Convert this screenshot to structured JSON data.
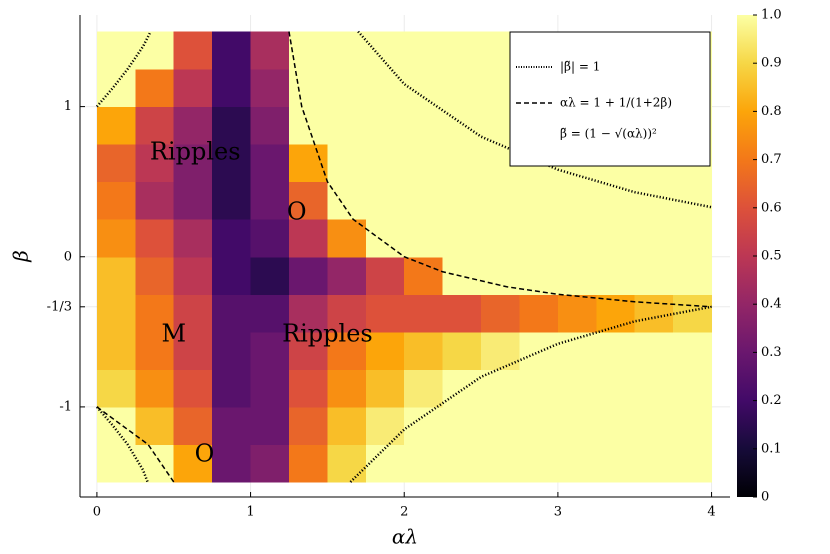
{
  "chart_data": {
    "type": "heatmap",
    "colormap": "inferno",
    "xlabel": "αλ",
    "ylabel": "β",
    "xlim": [
      -0.11,
      4.12
    ],
    "ylim": [
      -1.6,
      1.61
    ],
    "xticks": [
      0,
      1,
      2,
      3,
      4
    ],
    "yticks": [
      -1,
      {
        "value": -0.3333,
        "label": "-1/3"
      },
      0,
      1
    ],
    "grid": true,
    "x": [
      0,
      0.25,
      0.5,
      0.75,
      1,
      1.25,
      1.5,
      1.75,
      2,
      2.25,
      2.5,
      2.75,
      3,
      3.25,
      3.5,
      3.75,
      4
    ],
    "y": [
      -1.5,
      -1.25,
      -1,
      -0.75,
      -0.5,
      -0.25,
      0,
      0.25,
      0.5,
      0.75,
      1,
      1.25,
      1.5
    ],
    "z": [
      [
        1,
        1,
        0.8,
        0.3,
        0.35,
        0.7,
        0.9,
        1,
        1,
        1,
        1,
        1,
        1,
        1,
        1,
        1
      ],
      [
        1,
        0.85,
        0.65,
        0.3,
        0.3,
        0.65,
        0.85,
        0.95,
        1,
        1,
        1,
        1,
        1,
        1,
        1,
        1
      ],
      [
        0.9,
        0.75,
        0.6,
        0.25,
        0.3,
        0.6,
        0.75,
        0.85,
        0.95,
        1,
        1,
        1,
        1,
        1,
        1,
        1
      ],
      [
        0.85,
        0.7,
        0.55,
        0.25,
        0.3,
        0.55,
        0.7,
        0.8,
        0.85,
        0.9,
        0.95,
        1,
        1,
        1,
        1,
        1
      ],
      [
        0.85,
        0.7,
        0.55,
        0.25,
        0.25,
        0.45,
        0.55,
        0.6,
        0.6,
        0.6,
        0.65,
        0.7,
        0.75,
        0.8,
        0.85,
        0.9
      ],
      [
        0.85,
        0.65,
        0.5,
        0.2,
        0.15,
        0.3,
        0.4,
        0.55,
        0.7,
        1,
        1,
        1,
        1,
        1,
        1,
        1
      ],
      [
        0.75,
        0.6,
        0.45,
        0.2,
        0.25,
        0.5,
        0.75,
        1,
        1,
        1,
        1,
        1,
        1,
        1,
        1,
        1
      ],
      [
        0.7,
        0.45,
        0.35,
        0.15,
        0.3,
        0.65,
        1,
        1,
        1,
        1,
        1,
        1,
        1,
        1,
        1,
        1
      ],
      [
        0.65,
        0.5,
        0.35,
        0.15,
        0.3,
        0.8,
        1,
        1,
        1,
        1,
        1,
        1,
        1,
        1,
        1,
        1
      ],
      [
        0.8,
        0.55,
        0.4,
        0.15,
        0.35,
        1,
        1,
        1,
        1,
        1,
        1,
        1,
        1,
        1,
        1,
        1
      ],
      [
        1,
        0.7,
        0.5,
        0.2,
        0.4,
        1,
        1,
        1,
        1,
        1,
        1,
        1,
        1,
        1,
        1,
        1
      ],
      [
        1,
        1,
        0.6,
        0.2,
        0.45,
        1,
        1,
        1,
        1,
        1,
        1,
        1,
        1,
        1,
        1,
        1
      ]
    ],
    "clim": [
      0,
      1
    ],
    "cticks": [
      0,
      0.1,
      0.2,
      0.3,
      0.4,
      0.5,
      0.6,
      0.7,
      0.8,
      0.9,
      {
        "value": 1,
        "label": "1.0"
      }
    ],
    "curves": [
      {
        "name": "|β̃| = 1",
        "style": "dotted",
        "segments": [
          {
            "x": [
              0,
              0.1,
              0.2,
              0.3,
              0.35
            ],
            "y": [
              1,
              1.12,
              1.25,
              1.4,
              1.5
            ]
          },
          {
            "x": [
              0,
              0.1,
              0.2,
              0.3,
              0.33
            ],
            "y": [
              -1,
              -1.12,
              -1.25,
              -1.42,
              -1.5
            ]
          },
          {
            "x": [
              1.7,
              2,
              2.5,
              3,
              3.5,
              4
            ],
            "y": [
              1.5,
              1.15,
              0.8,
              0.58,
              0.43,
              0.33
            ]
          },
          {
            "x": [
              1.65,
              2,
              2.5,
              3,
              3.5,
              4
            ],
            "y": [
              -1.5,
              -1.15,
              -0.8,
              -0.58,
              -0.43,
              -0.333
            ]
          }
        ]
      },
      {
        "name": "αλ = 1 + 1/(1+2β)",
        "style": "dashed",
        "segments": [
          {
            "x": [
              1.25,
              1.333,
              1.5,
              1.667,
              2,
              2.25,
              2.667,
              3,
              3.5,
              4
            ],
            "y": [
              1.5,
              1,
              0.5,
              0.25,
              0,
              -0.1,
              -0.2,
              -0.25,
              -0.3,
              -0.3333
            ]
          },
          {
            "x": [
              0,
              0.333,
              0.5
            ],
            "y": [
              -1,
              -1.25,
              -1.5
            ]
          }
        ]
      }
    ],
    "legend_note": "β̃ = (1 − √(αλ))²",
    "annotations": [
      {
        "text": "Ripples",
        "x": 0.64,
        "y": 0.69
      },
      {
        "text": "O",
        "x": 1.3,
        "y": 0.29
      },
      {
        "text": "M",
        "x": 0.5,
        "y": -0.52
      },
      {
        "text": "Ripples",
        "x": 1.5,
        "y": -0.52
      },
      {
        "text": "O",
        "x": 0.7,
        "y": -1.32
      }
    ]
  }
}
